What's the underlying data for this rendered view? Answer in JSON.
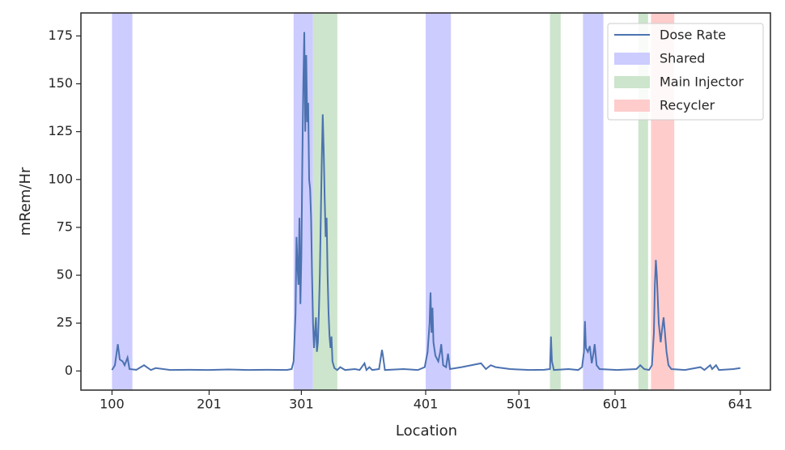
{
  "chart_data": {
    "type": "line",
    "xlabel": "Location",
    "ylabel": "mRem/Hr",
    "xlim": [
      -32,
      678
    ],
    "ylim": [
      -10,
      187
    ],
    "xticks": [
      {
        "value": 0,
        "label": "100"
      },
      {
        "value": 100,
        "label": "201"
      },
      {
        "value": 195,
        "label": "301"
      },
      {
        "value": 323,
        "label": "401"
      },
      {
        "value": 419,
        "label": "501"
      },
      {
        "value": 518,
        "label": "601"
      },
      {
        "value": 647,
        "label": "641"
      }
    ],
    "yticks": [
      0,
      25,
      50,
      75,
      100,
      125,
      150,
      175
    ],
    "legend": "upper right",
    "series": [
      {
        "name": "Dose Rate",
        "color": "#4c72b0",
        "x": [
          0,
          3,
          6,
          8,
          11,
          13,
          16,
          18,
          25,
          33,
          40,
          45,
          60,
          80,
          100,
          120,
          140,
          160,
          180,
          185,
          187,
          189,
          190,
          191,
          192,
          193,
          194,
          195,
          196,
          197,
          198,
          199,
          200,
          201,
          202,
          203,
          204,
          205,
          206,
          207,
          208,
          209,
          210,
          211,
          212,
          213,
          214,
          215,
          216,
          217,
          218,
          219,
          220,
          221,
          222,
          223,
          224,
          225,
          226,
          227,
          229,
          232,
          235,
          240,
          250,
          255,
          260,
          262,
          265,
          268,
          275,
          278,
          279,
          281,
          300,
          315,
          322,
          325,
          327,
          328,
          329,
          330,
          331,
          333,
          336,
          338,
          339,
          341,
          344,
          346,
          348,
          360,
          380,
          385,
          390,
          395,
          410,
          430,
          445,
          451,
          452,
          453,
          455,
          470,
          480,
          484,
          486,
          487,
          488,
          490,
          492,
          494,
          496,
          497,
          499,
          502,
          520,
          540,
          544,
          548,
          553,
          556,
          558,
          559,
          560,
          561,
          563,
          565,
          566,
          568,
          569,
          571,
          573,
          576,
          590,
          606,
          610,
          616,
          618,
          622,
          625,
          640,
          647
        ],
        "values": [
          0.5,
          3,
          14,
          6,
          5,
          3,
          7,
          1,
          0.6,
          3,
          0.5,
          1.5,
          0.5,
          0.6,
          0.5,
          0.8,
          0.5,
          0.6,
          0.5,
          1,
          5,
          30,
          70,
          55,
          45,
          80,
          35,
          60,
          110,
          150,
          177,
          125,
          165,
          130,
          140,
          100,
          95,
          80,
          50,
          25,
          12,
          20,
          28,
          10,
          15,
          30,
          50,
          80,
          110,
          134,
          115,
          90,
          70,
          80,
          50,
          30,
          18,
          12,
          18,
          5,
          1.5,
          0.5,
          2,
          0.5,
          1,
          0.5,
          4,
          0.5,
          2,
          0.5,
          1,
          11,
          8,
          0.5,
          1,
          0.5,
          2,
          10,
          25,
          41,
          20,
          33,
          15,
          8,
          5,
          10,
          14,
          3,
          2,
          9,
          1,
          2,
          4,
          1,
          3,
          2,
          1,
          0.5,
          0.6,
          1,
          18,
          5,
          0.5,
          1,
          0.5,
          2,
          10,
          26,
          12,
          10,
          13,
          4,
          10,
          14,
          3,
          1,
          0.5,
          1,
          3,
          1,
          0.5,
          3,
          20,
          45,
          58,
          50,
          25,
          15,
          20,
          28,
          22,
          10,
          3,
          1,
          0.5,
          2,
          0.5,
          3,
          1,
          3,
          0.5,
          1,
          1.5
        ]
      }
    ],
    "spans": [
      {
        "name": "Shared",
        "color": "#ccccff",
        "ranges": [
          [
            0,
            21
          ],
          [
            187,
            207
          ],
          [
            323,
            349
          ],
          [
            485,
            506
          ]
        ]
      },
      {
        "name": "Main Injector",
        "color": "#cce5cc",
        "ranges": [
          [
            207,
            232
          ],
          [
            451,
            462
          ],
          [
            542,
            552
          ]
        ]
      },
      {
        "name": "Recycler",
        "color": "#ffcccc",
        "ranges": [
          [
            555,
            579
          ]
        ]
      }
    ]
  }
}
